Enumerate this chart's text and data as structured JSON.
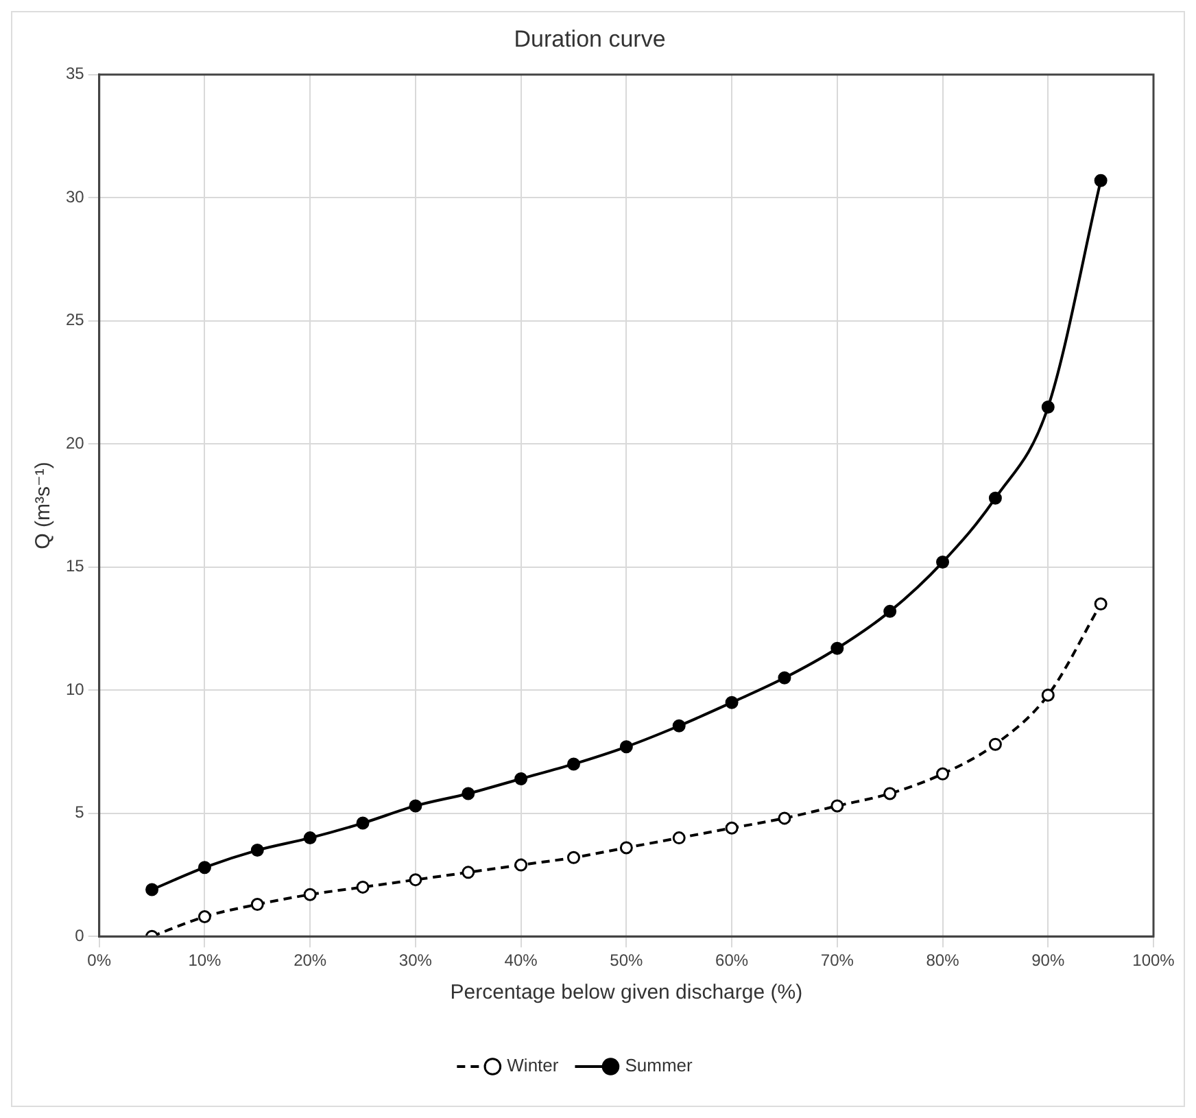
{
  "chart_data": {
    "type": "line",
    "title": "Duration curve",
    "xlabel": "Percentage below given discharge (%)",
    "ylabel": "Q (m³s⁻¹)",
    "x": [
      5,
      10,
      15,
      20,
      25,
      30,
      35,
      40,
      45,
      50,
      55,
      60,
      65,
      70,
      75,
      80,
      85,
      90,
      95
    ],
    "series": [
      {
        "name": "Winter",
        "color": "#000000",
        "line_style": "dashed",
        "values": [
          0,
          0.8,
          1.3,
          1.7,
          2.0,
          2.3,
          2.6,
          2.9,
          3.2,
          3.6,
          4.0,
          4.4,
          4.8,
          5.3,
          5.8,
          6.6,
          7.8,
          9.8,
          13.5
        ]
      },
      {
        "name": "Summer",
        "color": "#000000",
        "line_style": "solid",
        "values": [
          1.9,
          2.8,
          3.5,
          4.0,
          4.6,
          5.3,
          5.8,
          6.4,
          7.0,
          7.7,
          8.55,
          9.5,
          10.5,
          11.7,
          13.2,
          15.2,
          17.8,
          21.5,
          30.7
        ]
      }
    ],
    "xlim": [
      0,
      100
    ],
    "xticks": [
      {
        "value": 0,
        "label": "0%"
      },
      {
        "value": 10,
        "label": "10%"
      },
      {
        "value": 20,
        "label": "20%"
      },
      {
        "value": 30,
        "label": "30%"
      },
      {
        "value": 40,
        "label": "40%"
      },
      {
        "value": 50,
        "label": "50%"
      },
      {
        "value": 60,
        "label": "60%"
      },
      {
        "value": 70,
        "label": "70%"
      },
      {
        "value": 80,
        "label": "80%"
      },
      {
        "value": 90,
        "label": "90%"
      },
      {
        "value": 100,
        "label": "100%"
      }
    ],
    "ylim": [
      0,
      35
    ],
    "yticks": [
      0,
      5,
      10,
      15,
      20,
      25,
      30,
      35
    ],
    "grid": true,
    "legend": "bottom",
    "marker": "circle"
  }
}
